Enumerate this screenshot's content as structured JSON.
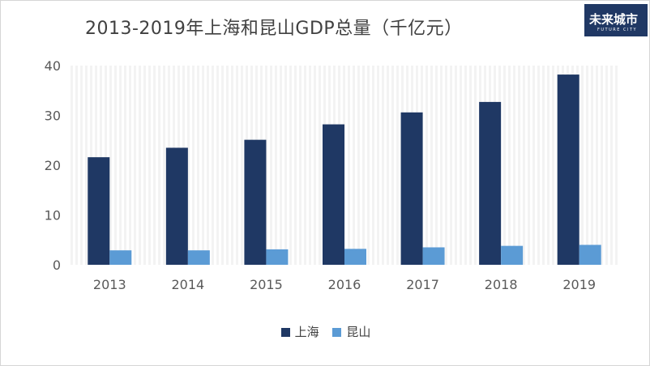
{
  "chart_data": {
    "type": "bar",
    "title": "2013-2019年上海和昆山GDP总量（千亿元）",
    "categories": [
      "2013",
      "2014",
      "2015",
      "2016",
      "2017",
      "2018",
      "2019"
    ],
    "series": [
      {
        "name": "上海",
        "color": "#1f3864",
        "values": [
          21.6,
          23.5,
          25.1,
          28.2,
          30.6,
          32.7,
          38.2
        ]
      },
      {
        "name": "昆山",
        "color": "#5b9bd5",
        "values": [
          2.9,
          2.9,
          3.1,
          3.2,
          3.5,
          3.8,
          4.0
        ]
      }
    ],
    "ylim": [
      0,
      40
    ],
    "yticks": [
      "0",
      "10",
      "20",
      "30",
      "40"
    ],
    "legend_position": "bottom",
    "grid": "vertical stripes"
  },
  "logo": {
    "mark": "未来城市",
    "sub": "FUTURE CITY"
  }
}
